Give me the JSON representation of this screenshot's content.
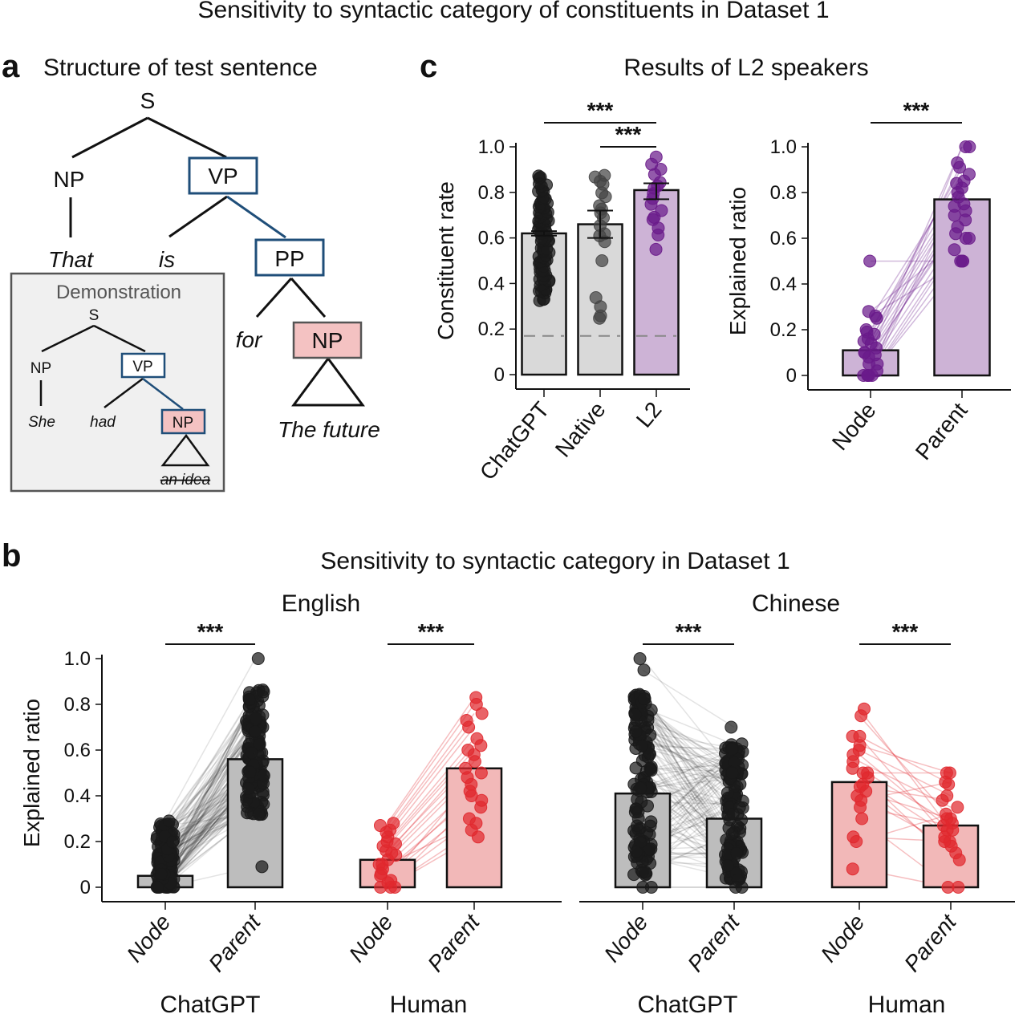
{
  "figure_title": "Sensitivity to syntactic category of constituents in Dataset 1",
  "panel_a": {
    "letter": "a",
    "title": "Structure of test sentence",
    "tree": {
      "root": "S",
      "np": "NP",
      "vp": "VP",
      "pp": "PP",
      "np_target": "NP",
      "words": {
        "that": "That",
        "is": "is",
        "for": "for",
        "the_future": "The future"
      }
    },
    "demonstration": {
      "label": "Demonstration",
      "root": "S",
      "np": "NP",
      "vp": "VP",
      "np_target": "NP",
      "words": {
        "she": "She",
        "had": "had",
        "an_idea": "an idea"
      }
    },
    "colors": {
      "highlight_box_border": "#1f4e79",
      "target_fill": "#f4c2c2",
      "demo_bg": "#f0f0f0"
    }
  },
  "panel_b": {
    "letter": "b",
    "title": "Sensitivity to syntactic category in Dataset 1",
    "languages": [
      "English",
      "Chinese"
    ],
    "groups": [
      "ChatGPT",
      "Human"
    ]
  },
  "panel_c": {
    "letter": "c",
    "title": "Results of L2 speakers"
  },
  "colors": {
    "chatgpt_point": "#1a1a1a",
    "chatgpt_bar": "#bdbdbd",
    "native_bar": "#d9d9d9",
    "human_point": "#e0282e",
    "human_bar": "#f2b8b8",
    "l2_point": "#6a1b8a",
    "l2_bar": "#cdb3d6",
    "chance_line": "#888888"
  },
  "chart_data": [
    {
      "id": "c-left",
      "type": "bar",
      "title": "Results of L2 speakers",
      "ylabel": "Constituent rate",
      "xlabel": "",
      "ylim": [
        0,
        1.0
      ],
      "yticks": [
        "0",
        "0.2",
        "0.4",
        "0.6",
        "0.8",
        "1.0"
      ],
      "categories": [
        "ChatGPT",
        "Native",
        "L2"
      ],
      "values": [
        0.62,
        0.66,
        0.81
      ],
      "error": [
        [
          0.61,
          0.63
        ],
        [
          0.6,
          0.72
        ],
        [
          0.77,
          0.84
        ]
      ],
      "chance_level": 0.17,
      "points": {
        "ChatGPT": [
          0.33,
          0.36,
          0.38,
          0.4,
          0.42,
          0.44,
          0.46,
          0.48,
          0.5,
          0.52,
          0.54,
          0.56,
          0.58,
          0.6,
          0.62,
          0.64,
          0.66,
          0.68,
          0.7,
          0.72,
          0.74,
          0.76,
          0.78,
          0.8,
          0.83,
          0.87
        ],
        "Native": [
          0.25,
          0.25,
          0.3,
          0.33,
          0.5,
          0.58,
          0.6,
          0.62,
          0.65,
          0.68,
          0.7,
          0.72,
          0.75,
          0.78,
          0.8,
          0.83,
          0.85,
          0.87,
          0.87
        ],
        "L2": [
          0.54,
          0.62,
          0.65,
          0.68,
          0.7,
          0.72,
          0.75,
          0.77,
          0.79,
          0.81,
          0.83,
          0.85,
          0.88,
          0.9,
          0.93,
          0.96
        ]
      },
      "significance": [
        {
          "pair": [
            "ChatGPT",
            "L2"
          ],
          "label": "***"
        },
        {
          "pair": [
            "Native",
            "L2"
          ],
          "label": "***"
        }
      ],
      "grid": false
    },
    {
      "id": "c-right",
      "type": "bar",
      "ylabel": "Explained ratio",
      "ylim": [
        0,
        1.0
      ],
      "yticks": [
        "0",
        "0.2",
        "0.4",
        "0.6",
        "0.8",
        "1.0"
      ],
      "categories": [
        "Node",
        "Parent"
      ],
      "values": [
        0.11,
        0.77
      ],
      "paired_points": [
        [
          0,
          0.5
        ],
        [
          0,
          0.55
        ],
        [
          0,
          0.6
        ],
        [
          0.5,
          0.5
        ],
        [
          0.02,
          0.62
        ],
        [
          0.05,
          0.65
        ],
        [
          0.08,
          0.7
        ],
        [
          0.1,
          0.72
        ],
        [
          0.12,
          0.74
        ],
        [
          0.14,
          0.78
        ],
        [
          0.16,
          0.8
        ],
        [
          0.18,
          0.82
        ],
        [
          0.2,
          0.85
        ],
        [
          0.25,
          0.88
        ],
        [
          0.28,
          0.6
        ],
        [
          0.26,
          0.5
        ],
        [
          0.15,
          0.93
        ],
        [
          0.1,
          1.0
        ],
        [
          0,
          1.0
        ],
        [
          0.19,
          0.91
        ],
        [
          0,
          0.84
        ],
        [
          0.05,
          0.75
        ],
        [
          0.09,
          0.68
        ]
      ],
      "significance": [
        {
          "pair": [
            "Node",
            "Parent"
          ],
          "label": "***"
        }
      ],
      "grid": false
    },
    {
      "id": "b-english",
      "type": "bar",
      "subtitle": "English",
      "ylabel": "Explained ratio",
      "ylim": [
        0,
        1.0
      ],
      "yticks": [
        "0",
        "0.2",
        "0.4",
        "0.6",
        "0.8",
        "1.0"
      ],
      "groups": [
        {
          "name": "ChatGPT",
          "categories": [
            "Node",
            "Parent"
          ],
          "values": [
            0.05,
            0.56
          ],
          "node_range": [
            0,
            0.29
          ],
          "parent_range": [
            0.09,
            1.0
          ],
          "n_points": 120
        },
        {
          "name": "Human",
          "categories": [
            "Node",
            "Parent"
          ],
          "values": [
            0.12,
            0.52
          ],
          "paired_points": [
            [
              0,
              0.22
            ],
            [
              0,
              0.25
            ],
            [
              0.02,
              0.3
            ],
            [
              0.05,
              0.35
            ],
            [
              0.08,
              0.4
            ],
            [
              0.1,
              0.45
            ],
            [
              0.12,
              0.5
            ],
            [
              0.14,
              0.52
            ],
            [
              0.16,
              0.55
            ],
            [
              0.18,
              0.6
            ],
            [
              0.2,
              0.65
            ],
            [
              0.22,
              0.7
            ],
            [
              0.25,
              0.76
            ],
            [
              0.27,
              0.8
            ],
            [
              0.28,
              0.83
            ],
            [
              0.1,
              0.28
            ],
            [
              0.06,
              0.42
            ],
            [
              0.03,
              0.48
            ],
            [
              0.15,
              0.58
            ],
            [
              0.19,
              0.62
            ],
            [
              0.24,
              0.73
            ],
            [
              0.0,
              0.38
            ]
          ]
        }
      ],
      "significance": [
        {
          "group": "ChatGPT",
          "label": "***"
        },
        {
          "group": "Human",
          "label": "***"
        }
      ],
      "grid": false
    },
    {
      "id": "b-chinese",
      "type": "bar",
      "subtitle": "Chinese",
      "ylim": [
        0,
        1.0
      ],
      "groups": [
        {
          "name": "ChatGPT",
          "categories": [
            "Node",
            "Parent"
          ],
          "values": [
            0.41,
            0.3
          ],
          "node_range": [
            0,
            1.0
          ],
          "parent_range": [
            0,
            0.75
          ],
          "n_points": 120
        },
        {
          "name": "Human",
          "categories": [
            "Node",
            "Parent"
          ],
          "values": [
            0.46,
            0.27
          ],
          "paired_points": [
            [
              0.78,
              0.25
            ],
            [
              0.75,
              0.3
            ],
            [
              0.66,
              0.2
            ],
            [
              0.66,
              0.45
            ],
            [
              0.62,
              0.5
            ],
            [
              0.6,
              0.4
            ],
            [
              0.55,
              0.35
            ],
            [
              0.52,
              0.28
            ],
            [
              0.5,
              0.5
            ],
            [
              0.48,
              0.22
            ],
            [
              0.45,
              0.15
            ],
            [
              0.42,
              0.3
            ],
            [
              0.4,
              0.18
            ],
            [
              0.38,
              0.46
            ],
            [
              0.35,
              0.27
            ],
            [
              0.3,
              0.0
            ],
            [
              0.22,
              0.2
            ],
            [
              0.2,
              0.32
            ],
            [
              0.08,
              0.0
            ],
            [
              0.5,
              0.12
            ],
            [
              0.44,
              0.38
            ],
            [
              0.58,
              0.25
            ]
          ]
        }
      ],
      "significance": [
        {
          "group": "ChatGPT",
          "label": "***"
        },
        {
          "group": "Human",
          "label": "***"
        }
      ],
      "grid": false
    }
  ]
}
